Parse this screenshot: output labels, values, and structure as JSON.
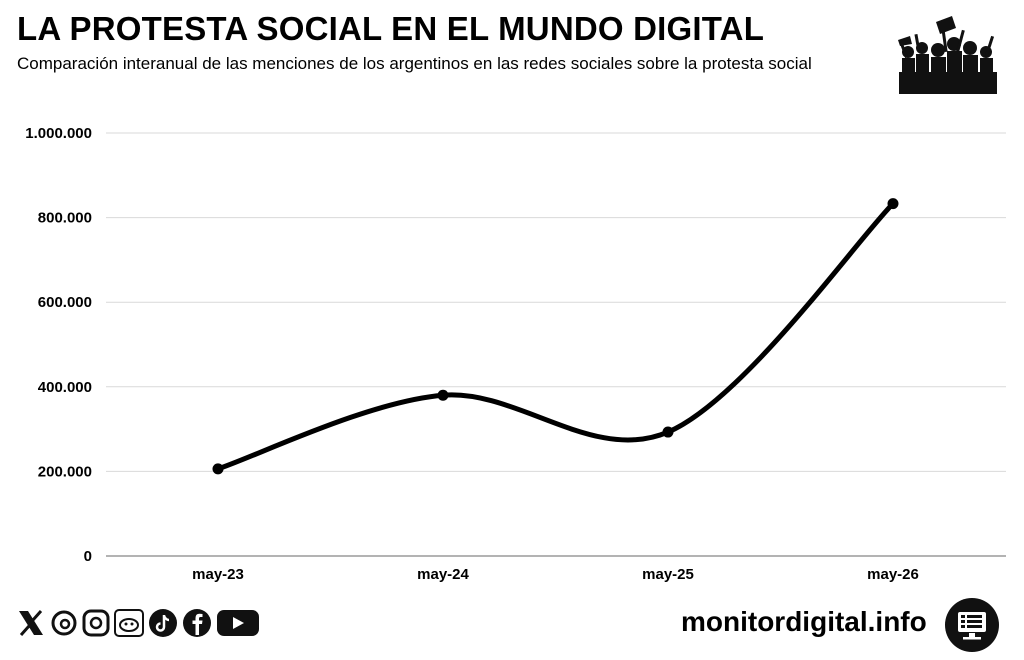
{
  "header": {
    "title": "LA PROTESTA SOCIAL EN EL MUNDO DIGITAL",
    "subtitle": "Comparación interanual de las menciones de los argentinos en las redes sociales sobre la protesta social"
  },
  "chart_data": {
    "type": "line",
    "title": "LA PROTESTA SOCIAL EN EL MUNDO DIGITAL",
    "subtitle": "Comparación interanual de las menciones de los argentinos en las redes sociales sobre la protesta social",
    "categories": [
      "may-23",
      "may-24",
      "may-25",
      "may-26"
    ],
    "series": [
      {
        "values": [
          206000,
          380000,
          293000,
          833000
        ]
      }
    ],
    "ylim": [
      0,
      1000000
    ],
    "yticks": [
      0,
      200000,
      400000,
      600000,
      800000,
      1000000
    ],
    "ytick_labels": [
      "0",
      "200.000",
      "400.000",
      "600.000",
      "800.000",
      "1.000.000"
    ],
    "grid": true,
    "line_color": "#000000",
    "grid_color": "#d9d9d9"
  },
  "footer": {
    "social_icons": [
      "x-icon",
      "threads-icon",
      "instagram-icon",
      "reddit-icon",
      "tiktok-icon",
      "facebook-icon",
      "youtube-icon"
    ],
    "brand": "monitordigital.info",
    "brand_icon": "monitor-icon"
  }
}
